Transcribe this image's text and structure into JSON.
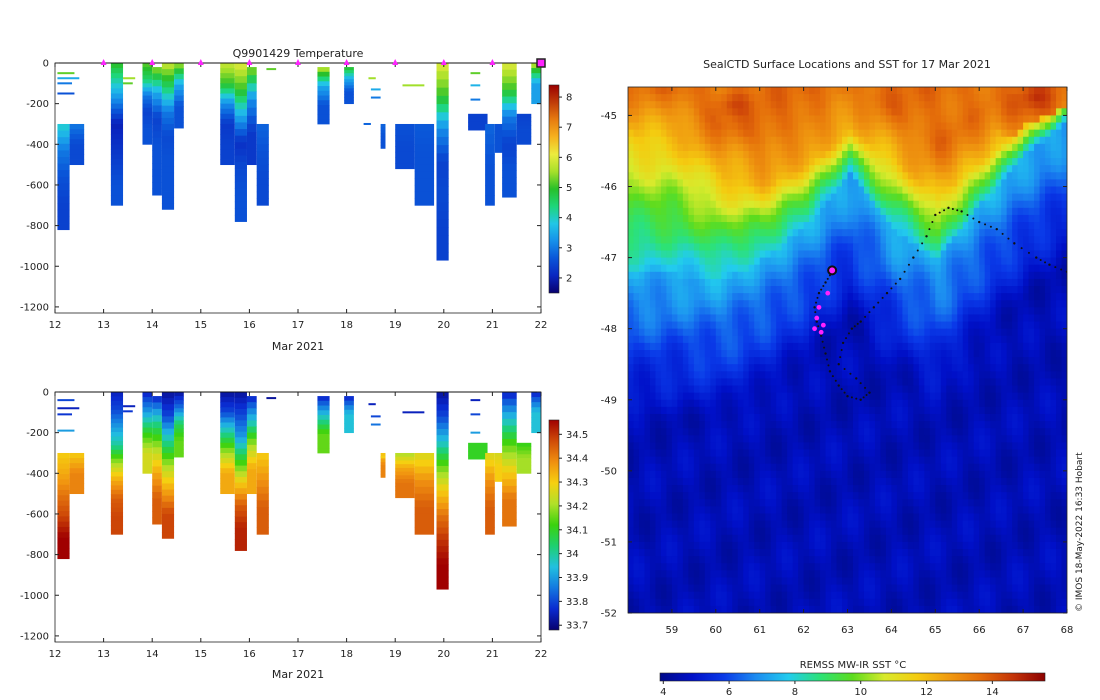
{
  "colors": {
    "temp_scale": [
      "#08006e",
      "#0a26c0",
      "#0a55d8",
      "#1690ea",
      "#22c6e6",
      "#1ed67a",
      "#28c02a",
      "#a6e02a",
      "#ecec3e",
      "#f6b21e",
      "#e77c10",
      "#c03c08",
      "#9a0000"
    ],
    "sal_scale": [
      "#08006e",
      "#0a2ad0",
      "#1478e0",
      "#22c0e0",
      "#1ed070",
      "#3ad20e",
      "#b0e02a",
      "#f6d010",
      "#f09010",
      "#d04c08",
      "#a00000"
    ],
    "sst_scale": [
      "#000a8a",
      "#0010c8",
      "#0a3ae8",
      "#1c8cf0",
      "#22ccee",
      "#2ce276",
      "#5cdc1e",
      "#d8ea2c",
      "#f4cc10",
      "#f09a10",
      "#e46c0a",
      "#c43408",
      "#8c0000"
    ],
    "track": "#111111",
    "highlight": "#ff22ff"
  },
  "chart_data": [
    {
      "type": "heatmap",
      "title": "Q9901429  Temperature",
      "xlabel": "Mar 2021",
      "ylabel": "",
      "xlim": [
        12,
        22
      ],
      "ylim": [
        -1230,
        0
      ],
      "xticks": [
        12,
        13,
        14,
        15,
        16,
        17,
        18,
        19,
        20,
        21,
        22
      ],
      "yticks": [
        0,
        -200,
        -400,
        -600,
        -800,
        -1000,
        -1200
      ],
      "colorbar": {
        "range": [
          1.5,
          8.4
        ],
        "ticks": [
          2,
          3,
          4,
          5,
          6,
          7,
          8
        ]
      },
      "surface_markers": [
        13,
        14,
        15,
        16,
        17,
        18,
        19,
        20,
        21
      ],
      "latest_marker": 22,
      "profiles": [
        {
          "t0": 12.05,
          "t1": 12.3,
          "bottom": -820,
          "top": -300,
          "v": [
            4,
            3,
            2.6,
            2.4
          ]
        },
        {
          "t0": 12.3,
          "t1": 12.6,
          "bottom": -500,
          "top": -300,
          "v": [
            3,
            2.5
          ]
        },
        {
          "t0": 13.15,
          "t1": 13.4,
          "bottom": -700,
          "top": 0,
          "v": [
            5,
            4,
            3,
            2,
            2.2,
            2.4,
            2.6
          ]
        },
        {
          "t0": 13.8,
          "t1": 14.0,
          "bottom": -400,
          "top": 0,
          "v": [
            5.2,
            4.5,
            3,
            2.4,
            2.6
          ]
        },
        {
          "t0": 14.0,
          "t1": 14.2,
          "bottom": -650,
          "top": -20,
          "v": [
            5.5,
            3.5,
            2.4,
            2.6,
            2.6
          ]
        },
        {
          "t0": 14.2,
          "t1": 14.45,
          "bottom": -720,
          "top": 0,
          "v": [
            5.8,
            4.5,
            3,
            2.5,
            2.6,
            2.6
          ]
        },
        {
          "t0": 14.45,
          "t1": 14.65,
          "bottom": -320,
          "top": 0,
          "v": [
            5.6,
            3.5,
            2.6
          ]
        },
        {
          "t0": 15.4,
          "t1": 15.7,
          "bottom": -500,
          "top": 0,
          "v": [
            5.8,
            5,
            3.2,
            2.3,
            2.4
          ]
        },
        {
          "t0": 15.7,
          "t1": 15.95,
          "bottom": -780,
          "top": 0,
          "v": [
            6,
            5,
            3.5,
            2.2,
            2.5,
            2.6
          ]
        },
        {
          "t0": 15.95,
          "t1": 16.15,
          "bottom": -500,
          "top": -20,
          "v": [
            5.5,
            3.2,
            2.3
          ]
        },
        {
          "t0": 16.15,
          "t1": 16.4,
          "bottom": -700,
          "top": -300,
          "v": [
            2.8,
            2.6,
            2.5
          ]
        },
        {
          "t0": 17.4,
          "t1": 17.65,
          "bottom": -300,
          "top": -20,
          "v": [
            5.8,
            3.5,
            2.6
          ]
        },
        {
          "t0": 17.95,
          "t1": 18.15,
          "bottom": -200,
          "top": -20,
          "v": [
            5,
            3.5,
            2.6
          ]
        },
        {
          "t0": 18.7,
          "t1": 18.8,
          "bottom": -420,
          "top": -300,
          "v": [
            2.8,
            2.6
          ]
        },
        {
          "t0": 19.0,
          "t1": 19.4,
          "bottom": -520,
          "top": -300,
          "v": [
            2.6,
            2.5
          ]
        },
        {
          "t0": 19.4,
          "t1": 19.8,
          "bottom": -700,
          "top": -300,
          "v": [
            2.7,
            2.6,
            2.6
          ]
        },
        {
          "t0": 19.85,
          "t1": 20.1,
          "bottom": -970,
          "top": 0,
          "v": [
            6,
            5,
            3.2,
            2.4,
            2.5,
            2.4
          ]
        },
        {
          "t0": 20.5,
          "t1": 20.9,
          "bottom": -330,
          "top": -250,
          "v": [
            2.4
          ]
        },
        {
          "t0": 20.85,
          "t1": 21.05,
          "bottom": -700,
          "top": -300,
          "v": [
            2.8,
            2.6
          ]
        },
        {
          "t0": 21.05,
          "t1": 21.3,
          "bottom": -440,
          "top": -300,
          "v": [
            2.6
          ]
        },
        {
          "t0": 21.2,
          "t1": 21.5,
          "bottom": -660,
          "top": 0,
          "v": [
            6,
            5,
            3,
            2.4,
            2.6
          ]
        },
        {
          "t0": 21.5,
          "t1": 21.8,
          "bottom": -400,
          "top": -250,
          "v": [
            2.4,
            2.5
          ]
        },
        {
          "t0": 21.8,
          "t1": 22.0,
          "bottom": -200,
          "top": 0,
          "v": [
            5.8,
            3.4
          ]
        }
      ],
      "lines": [
        {
          "t0": 12.05,
          "t1": 12.4,
          "d": -50,
          "v": 5.2
        },
        {
          "t0": 12.05,
          "t1": 12.5,
          "d": -75,
          "v": 3.5
        },
        {
          "t0": 12.05,
          "t1": 12.35,
          "d": -100,
          "v": 3
        },
        {
          "t0": 12.05,
          "t1": 12.4,
          "d": -150,
          "v": 2.6
        },
        {
          "t0": 13.4,
          "t1": 13.65,
          "d": -75,
          "v": 5.5
        },
        {
          "t0": 13.4,
          "t1": 13.6,
          "d": -100,
          "v": 5.2
        },
        {
          "t0": 16.35,
          "t1": 16.55,
          "d": -30,
          "v": 5.2
        },
        {
          "t0": 18.45,
          "t1": 18.6,
          "d": -75,
          "v": 5.5
        },
        {
          "t0": 18.5,
          "t1": 18.7,
          "d": -130,
          "v": 3.5
        },
        {
          "t0": 18.5,
          "t1": 18.7,
          "d": -170,
          "v": 3
        },
        {
          "t0": 18.35,
          "t1": 18.5,
          "d": -300,
          "v": 2.8
        },
        {
          "t0": 19.15,
          "t1": 19.6,
          "d": -110,
          "v": 5.5
        },
        {
          "t0": 20.55,
          "t1": 20.75,
          "d": -50,
          "v": 5.2
        },
        {
          "t0": 20.55,
          "t1": 20.75,
          "d": -110,
          "v": 3.6
        },
        {
          "t0": 20.55,
          "t1": 20.75,
          "d": -180,
          "v": 3
        }
      ]
    },
    {
      "type": "heatmap",
      "title": "",
      "xlabel": "Mar 2021",
      "ylabel": "",
      "xlim": [
        12,
        22
      ],
      "ylim": [
        -1230,
        0
      ],
      "xticks": [
        12,
        13,
        14,
        15,
        16,
        17,
        18,
        19,
        20,
        21,
        22
      ],
      "yticks": [
        0,
        -200,
        -400,
        -600,
        -800,
        -1000,
        -1200
      ],
      "colorbar": {
        "range": [
          33.68,
          34.56
        ],
        "ticks": [
          33.7,
          33.8,
          33.9,
          34,
          34.1,
          34.2,
          34.3,
          34.4,
          34.5
        ]
      },
      "profiles": [
        {
          "t0": 12.05,
          "t1": 12.3,
          "bottom": -820,
          "top": -300,
          "v": [
            34.3,
            34.35,
            34.42,
            34.48,
            34.56
          ]
        },
        {
          "t0": 12.3,
          "t1": 12.6,
          "bottom": -500,
          "top": -300,
          "v": [
            34.3,
            34.4
          ]
        },
        {
          "t0": 13.15,
          "t1": 13.4,
          "bottom": -700,
          "top": 0,
          "v": [
            33.75,
            33.8,
            33.9,
            34,
            34.2,
            34.35,
            34.45,
            34.48
          ]
        },
        {
          "t0": 13.8,
          "t1": 14.0,
          "bottom": -400,
          "top": 0,
          "v": [
            33.75,
            33.9,
            34.1,
            34.25
          ]
        },
        {
          "t0": 14.0,
          "t1": 14.2,
          "bottom": -650,
          "top": -20,
          "v": [
            33.75,
            34,
            34.2,
            34.35,
            34.45
          ]
        },
        {
          "t0": 14.2,
          "t1": 14.45,
          "bottom": -720,
          "top": 0,
          "v": [
            33.72,
            33.8,
            34,
            34.2,
            34.35,
            34.48
          ]
        },
        {
          "t0": 14.45,
          "t1": 14.65,
          "bottom": -320,
          "top": 0,
          "v": [
            33.72,
            33.85,
            34.05,
            34.15
          ]
        },
        {
          "t0": 15.4,
          "t1": 15.7,
          "bottom": -500,
          "top": 0,
          "v": [
            33.72,
            33.8,
            34,
            34.2,
            34.35
          ]
        },
        {
          "t0": 15.7,
          "t1": 15.95,
          "bottom": -780,
          "top": 0,
          "v": [
            33.72,
            33.8,
            33.9,
            34.1,
            34.3,
            34.45,
            34.52
          ]
        },
        {
          "t0": 15.95,
          "t1": 16.15,
          "bottom": -500,
          "top": -20,
          "v": [
            33.75,
            33.95,
            34.2,
            34.35
          ]
        },
        {
          "t0": 16.15,
          "t1": 16.4,
          "bottom": -700,
          "top": -300,
          "v": [
            34.3,
            34.38,
            34.45
          ]
        },
        {
          "t0": 17.4,
          "t1": 17.65,
          "bottom": -300,
          "top": -20,
          "v": [
            33.75,
            33.95,
            34.15
          ]
        },
        {
          "t0": 17.95,
          "t1": 18.15,
          "bottom": -200,
          "top": -20,
          "v": [
            33.75,
            33.95
          ]
        },
        {
          "t0": 18.7,
          "t1": 18.8,
          "bottom": -420,
          "top": -300,
          "v": [
            34.3,
            34.4
          ]
        },
        {
          "t0": 19.0,
          "t1": 19.4,
          "bottom": -520,
          "top": -300,
          "v": [
            34.2,
            34.35,
            34.42
          ]
        },
        {
          "t0": 19.4,
          "t1": 19.8,
          "bottom": -700,
          "top": -300,
          "v": [
            34.25,
            34.38,
            34.45
          ]
        },
        {
          "t0": 19.85,
          "t1": 20.1,
          "bottom": -970,
          "top": 0,
          "v": [
            33.72,
            33.8,
            33.95,
            34.15,
            34.3,
            34.42,
            34.5,
            34.56
          ]
        },
        {
          "t0": 20.5,
          "t1": 20.9,
          "bottom": -330,
          "top": -250,
          "v": [
            34.1
          ]
        },
        {
          "t0": 20.85,
          "t1": 21.05,
          "bottom": -700,
          "top": -300,
          "v": [
            34.25,
            34.38,
            34.45
          ]
        },
        {
          "t0": 21.05,
          "t1": 21.3,
          "bottom": -440,
          "top": -300,
          "v": [
            34.25,
            34.3
          ]
        },
        {
          "t0": 21.2,
          "t1": 21.5,
          "bottom": -660,
          "top": 0,
          "v": [
            33.75,
            33.95,
            34.15,
            34.3,
            34.42
          ]
        },
        {
          "t0": 21.5,
          "t1": 21.8,
          "bottom": -400,
          "top": -250,
          "v": [
            34.1,
            34.2
          ]
        },
        {
          "t0": 21.8,
          "t1": 22.0,
          "bottom": -200,
          "top": 0,
          "v": [
            33.75,
            33.95
          ]
        }
      ],
      "lines": [
        {
          "t0": 12.05,
          "t1": 12.4,
          "d": -40,
          "v": 33.8
        },
        {
          "t0": 12.05,
          "t1": 12.5,
          "d": -80,
          "v": 33.75
        },
        {
          "t0": 12.05,
          "t1": 12.35,
          "d": -110,
          "v": 33.78
        },
        {
          "t0": 12.05,
          "t1": 12.4,
          "d": -190,
          "v": 33.9
        },
        {
          "t0": 13.4,
          "t1": 13.65,
          "d": -70,
          "v": 33.75
        },
        {
          "t0": 13.4,
          "t1": 13.6,
          "d": -95,
          "v": 33.78
        },
        {
          "t0": 16.35,
          "t1": 16.55,
          "d": -30,
          "v": 33.72
        },
        {
          "t0": 18.45,
          "t1": 18.6,
          "d": -60,
          "v": 33.75
        },
        {
          "t0": 18.5,
          "t1": 18.7,
          "d": -120,
          "v": 33.8
        },
        {
          "t0": 18.5,
          "t1": 18.7,
          "d": -160,
          "v": 33.85
        },
        {
          "t0": 18.7,
          "t1": 18.8,
          "d": -320,
          "v": 34.3
        },
        {
          "t0": 19.15,
          "t1": 19.6,
          "d": -100,
          "v": 33.75
        },
        {
          "t0": 20.55,
          "t1": 20.75,
          "d": -40,
          "v": 33.75
        },
        {
          "t0": 20.55,
          "t1": 20.75,
          "d": -110,
          "v": 33.8
        },
        {
          "t0": 20.55,
          "t1": 20.75,
          "d": -200,
          "v": 33.9
        }
      ]
    },
    {
      "type": "heatmap",
      "title": "SealCTD Surface Locations and SST for 17 Mar 2021",
      "xlabel": "",
      "ylabel": "",
      "xlim": [
        58,
        68
      ],
      "ylim": [
        -52,
        -44.6
      ],
      "xticks": [
        59,
        60,
        61,
        62,
        63,
        64,
        65,
        66,
        67,
        68
      ],
      "yticks": [
        -45,
        -46,
        -47,
        -48,
        -49,
        -50,
        -51,
        -52
      ],
      "colorbar": {
        "label": "REMSS MW-IR SST °C",
        "range": [
          3.9,
          15.6
        ],
        "ticks": [
          4,
          6,
          8,
          10,
          12,
          14
        ]
      },
      "sst_field": {
        "upper_x": [
          58,
          59,
          60,
          61,
          62,
          63,
          64,
          65,
          66,
          67,
          68
        ],
        "upper_lat": [
          -47.2,
          -47.2,
          -47.3,
          -47.0,
          -46.5,
          -45.8,
          -46.6,
          -47.0,
          -46.2,
          -45.5,
          -45.0
        ],
        "warm_front_lat": [
          -45.2,
          -45.3,
          -45.8,
          -46.0,
          -45.7,
          -45.2,
          -45.6,
          -46.1,
          -45.6,
          -45.1,
          -44.8
        ],
        "hot_spots": [
          {
            "lon": 60.3,
            "lat": -44.8,
            "v": 14.3
          },
          {
            "lon": 67.2,
            "lat": -44.7,
            "v": 14.5
          }
        ]
      },
      "track": [
        [
          68.0,
          -47.2
        ],
        [
          67.6,
          -47.1
        ],
        [
          67.3,
          -47.0
        ],
        [
          66.8,
          -46.8
        ],
        [
          66.4,
          -46.6
        ],
        [
          66.0,
          -46.5
        ],
        [
          65.6,
          -46.35
        ],
        [
          65.3,
          -46.3
        ],
        [
          65.0,
          -46.4
        ],
        [
          64.8,
          -46.7
        ],
        [
          64.5,
          -47.0
        ],
        [
          64.2,
          -47.3
        ],
        [
          63.9,
          -47.5
        ],
        [
          63.6,
          -47.7
        ],
        [
          63.3,
          -47.9
        ],
        [
          63.1,
          -48.0
        ],
        [
          62.9,
          -48.2
        ],
        [
          62.8,
          -48.5
        ],
        [
          63.2,
          -48.7
        ],
        [
          63.5,
          -48.9
        ],
        [
          63.3,
          -49.0
        ],
        [
          63.0,
          -48.95
        ],
        [
          62.8,
          -48.8
        ],
        [
          62.6,
          -48.6
        ],
        [
          62.5,
          -48.35
        ],
        [
          62.4,
          -48.1
        ],
        [
          62.3,
          -47.9
        ],
        [
          62.25,
          -47.7
        ],
        [
          62.35,
          -47.5
        ],
        [
          62.5,
          -47.35
        ],
        [
          62.65,
          -47.2
        ]
      ],
      "highlight_points": [
        [
          62.35,
          -47.7
        ],
        [
          62.3,
          -47.85
        ],
        [
          62.45,
          -47.95
        ],
        [
          62.25,
          -48.0
        ],
        [
          62.4,
          -48.05
        ],
        [
          62.55,
          -47.5
        ]
      ],
      "latest_position": [
        62.65,
        -47.18
      ]
    }
  ],
  "watermark": "© IMOS 18-May-2022 16:33 Hobart"
}
